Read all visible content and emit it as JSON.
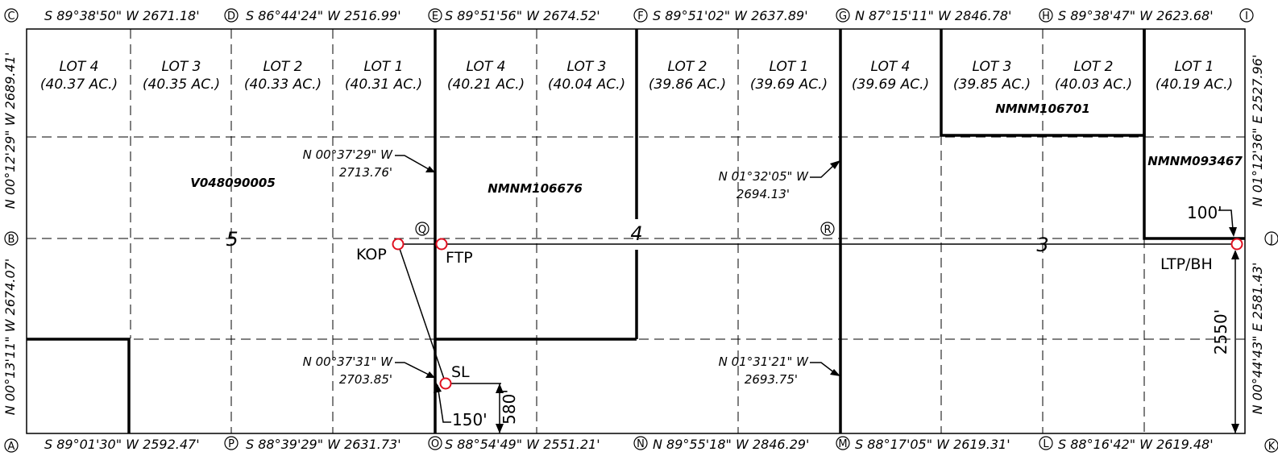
{
  "corners": {
    "A": "A",
    "B": "B",
    "C": "C",
    "D": "D",
    "E": "E",
    "F": "F",
    "G": "G",
    "H": "H",
    "I": "I",
    "J": "J",
    "K": "K",
    "L": "L",
    "M": "M",
    "N": "N",
    "O": "O",
    "P": "P",
    "Q": "Q",
    "R": "R"
  },
  "top_bearings": [
    "S 89°38'50\" W 2671.18'",
    "S 86°44'24\" W 2516.99'",
    "S 89°51'56\" W 2674.52'",
    "S 89°51'02\" W 2637.89'",
    "N 87°15'11\" W 2846.78'",
    "S 89°38'47\" W 2623.68'"
  ],
  "bottom_bearings": [
    "S 89°01'30\" W 2592.47'",
    "S 88°39'29\" W 2631.73'",
    "S 88°54'49\" W 2551.21'",
    "N 89°55'18\" W 2846.29'",
    "S 88°17'05\" W 2619.31'",
    "S 88°16'42\" W 2619.48'"
  ],
  "left_bearings": {
    "upper": "N 00°12'29\" W 2689.41'",
    "lower": "N 00°13'11\" W 2674.07'"
  },
  "right_bearings": {
    "upper": "N 01°12'36\" E 2527.96'",
    "lower": "N 00°44'43\" E 2581.43'"
  },
  "lots": [
    {
      "name": "LOT 4",
      "acres": "(40.37 AC.)"
    },
    {
      "name": "LOT 3",
      "acres": "(40.35 AC.)"
    },
    {
      "name": "LOT 2",
      "acres": "(40.33 AC.)"
    },
    {
      "name": "LOT 1",
      "acres": "(40.31 AC.)"
    },
    {
      "name": "LOT 4",
      "acres": "(40.21 AC.)"
    },
    {
      "name": "LOT 3",
      "acres": "(40.04 AC.)"
    },
    {
      "name": "LOT 2",
      "acres": "(39.86 AC.)"
    },
    {
      "name": "LOT 1",
      "acres": "(39.69 AC.)"
    },
    {
      "name": "LOT 4",
      "acres": "(39.69 AC.)"
    },
    {
      "name": "LOT 3",
      "acres": "(39.85 AC.)"
    },
    {
      "name": "LOT 2",
      "acres": "(40.03 AC.)"
    },
    {
      "name": "LOT 1",
      "acres": "(40.19 AC.)"
    }
  ],
  "leases": {
    "left": "V048090005",
    "middle": "NMNM106676",
    "top_right": "NMNM106701",
    "right": "NMNM093467"
  },
  "sections": {
    "s5": "5",
    "s4": "4",
    "s3": "3"
  },
  "calls": {
    "c1": "N 00°37'29\" W",
    "c1d": "2713.76'",
    "c2": "N 01°32'05\" W",
    "c2d": "2694.13'",
    "c3": "N 00°37'31\" W",
    "c3d": "2703.85'",
    "c4": "N 01°31'21\" W",
    "c4d": "2693.75'"
  },
  "points": {
    "kop": "KOP",
    "ftp": "FTP",
    "sl": "SL",
    "ltp": "LTP/BH"
  },
  "dimensions": {
    "d150": "150'",
    "d580": "580'",
    "d100": "100'",
    "d2550": "2550'"
  },
  "colors": {
    "line": "#000000",
    "marker": "#e01020"
  }
}
